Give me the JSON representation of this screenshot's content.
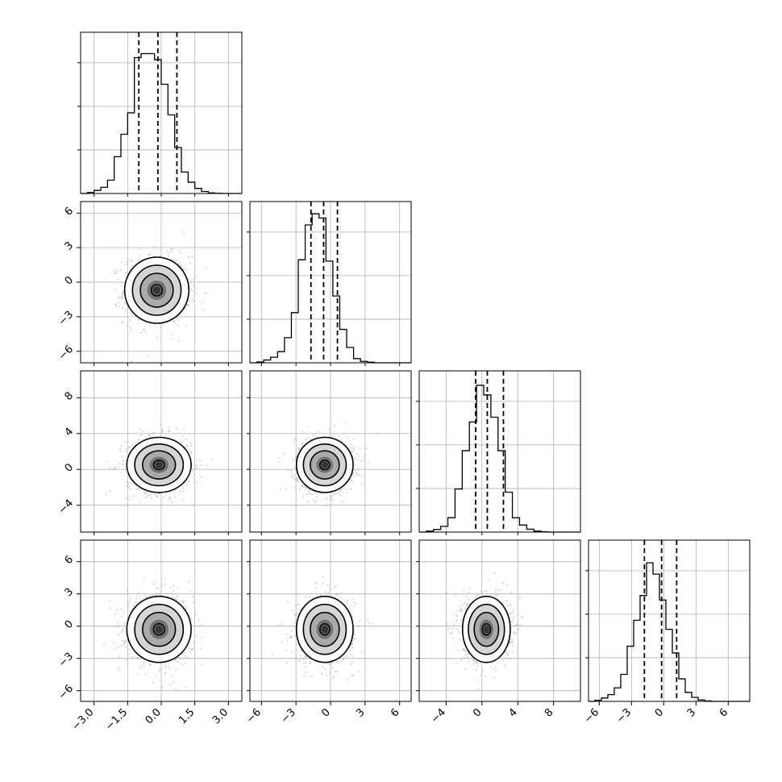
{
  "chart_data": {
    "type": "corner",
    "n_params": 4,
    "colors": {
      "hist": "#000000",
      "grid": "#b0b0b0",
      "scatter": "#9a9a9a",
      "frame": "#000000"
    },
    "diagonal": [
      {
        "param_index": 0,
        "range": [
          -3.6,
          3.6
        ],
        "hist_max": 0.075,
        "x_ticks": [
          "-3.0",
          "-1.5",
          "0.0",
          "1.5",
          "3.0"
        ],
        "x_tick_values": [
          -3.0,
          -1.5,
          0.0,
          1.5,
          3.0
        ],
        "bins": [
          -3.6,
          -3.3,
          -3.0,
          -2.7,
          -2.4,
          -2.1,
          -1.8,
          -1.5,
          -1.2,
          -0.9,
          -0.6,
          -0.3,
          0.0,
          0.3,
          0.6,
          0.9,
          1.2,
          1.5,
          1.8,
          2.1,
          2.4,
          2.7,
          3.0,
          3.3,
          3.6
        ],
        "counts": [
          0,
          0.0005,
          0.0015,
          0.003,
          0.0065,
          0.018,
          0.029,
          0.0395,
          0.0665,
          0.0685,
          0.0685,
          0.0655,
          0.0535,
          0.0385,
          0.0225,
          0.0105,
          0.0055,
          0.0025,
          0.001,
          0.0003,
          0.0001,
          0,
          0,
          0
        ],
        "quantiles": [
          -1.0,
          -0.15,
          0.7
        ]
      },
      {
        "param_index": 1,
        "range": [
          -7,
          7
        ],
        "hist_max": 0.055,
        "x_ticks": [
          "-6",
          "-3",
          "0",
          "3",
          "6"
        ],
        "x_tick_values": [
          -6,
          -3,
          0,
          3,
          6
        ],
        "bins": [
          -7.0,
          -6.4,
          -5.8,
          -5.2,
          -4.6,
          -4.0,
          -3.4,
          -2.8,
          -2.2,
          -1.6,
          -1.0,
          -0.4,
          0.2,
          0.8,
          1.4,
          2.0,
          2.6,
          3.2,
          3.8,
          4.4,
          5.0,
          5.6,
          6.2,
          7.0
        ],
        "counts": [
          0,
          0.0003,
          0.001,
          0.002,
          0.004,
          0.009,
          0.018,
          0.037,
          0.0495,
          0.0535,
          0.052,
          0.0365,
          0.024,
          0.012,
          0.0055,
          0.0015,
          0.0005,
          0.0002,
          0,
          0,
          0,
          0,
          0
        ],
        "quantiles": [
          -1.7,
          -0.6,
          0.6
        ]
      },
      {
        "param_index": 2,
        "range": [
          -7,
          11
        ],
        "hist_max": 0.048,
        "x_ticks": [
          "-4",
          "0",
          "4",
          "8"
        ],
        "x_tick_values": [
          -4,
          0,
          4,
          8
        ],
        "bins": [
          -7.0,
          -6.2,
          -5.4,
          -4.6,
          -3.8,
          -3.0,
          -2.2,
          -1.4,
          -0.6,
          0.2,
          1.0,
          1.8,
          2.6,
          3.4,
          4.2,
          5.0,
          5.8,
          6.6,
          7.4,
          8.2,
          9.0,
          10.0,
          11.0
        ],
        "counts": [
          0,
          0.0003,
          0.0008,
          0.0018,
          0.0045,
          0.0135,
          0.0255,
          0.0345,
          0.046,
          0.043,
          0.036,
          0.0255,
          0.0125,
          0.0045,
          0.0022,
          0.0009,
          0.0003,
          0.0001,
          0,
          0,
          0,
          0
        ],
        "quantiles": [
          -0.7,
          0.6,
          2.4
        ]
      },
      {
        "param_index": 3,
        "range": [
          -7,
          8
        ],
        "hist_max": 0.068,
        "x_ticks": [
          "-6",
          "-3",
          "0",
          "3",
          "6"
        ],
        "x_tick_values": [
          -6,
          -3,
          0,
          3,
          6
        ],
        "bins": [
          -7.0,
          -6.4,
          -5.8,
          -5.2,
          -4.6,
          -4.0,
          -3.4,
          -2.8,
          -2.2,
          -1.6,
          -1.0,
          -0.4,
          0.2,
          0.8,
          1.4,
          2.0,
          2.6,
          3.2,
          3.8,
          4.4,
          5.0,
          5.6,
          6.2,
          8.0
        ],
        "counts": [
          0,
          0.0005,
          0.0015,
          0.003,
          0.006,
          0.012,
          0.0245,
          0.036,
          0.047,
          0.0615,
          0.0565,
          0.045,
          0.032,
          0.0215,
          0.01,
          0.004,
          0.0018,
          0.0006,
          0.0002,
          0,
          0,
          0,
          0
        ],
        "quantiles": [
          -1.8,
          -0.2,
          1.2
        ]
      }
    ],
    "y_ticks": [
      null,
      {
        "labels": [
          "6",
          "3",
          "0",
          "-3",
          "-6"
        ],
        "values": [
          6,
          3,
          0,
          -3,
          -6
        ]
      },
      {
        "labels": [
          "8",
          "4",
          "0",
          "-4"
        ],
        "values": [
          8,
          4,
          0,
          -4
        ]
      },
      {
        "labels": [
          "6",
          "3",
          "0",
          "-3",
          "-6"
        ],
        "values": [
          6,
          3,
          0,
          -3,
          -6
        ]
      }
    ],
    "pairs": [
      {
        "row": 1,
        "col": 0,
        "mean": [
          -0.2,
          -0.7
        ],
        "spread": [
          0.7,
          1.4
        ]
      },
      {
        "row": 2,
        "col": 0,
        "mean": [
          -0.1,
          0.5
        ],
        "spread": [
          0.7,
          1.5
        ]
      },
      {
        "row": 2,
        "col": 1,
        "mean": [
          -0.5,
          0.5
        ],
        "spread": [
          1.2,
          1.5
        ]
      },
      {
        "row": 3,
        "col": 0,
        "mean": [
          -0.1,
          -0.3
        ],
        "spread": [
          0.7,
          1.5
        ]
      },
      {
        "row": 3,
        "col": 1,
        "mean": [
          -0.5,
          -0.3
        ],
        "spread": [
          1.2,
          1.5
        ]
      },
      {
        "row": 3,
        "col": 2,
        "mean": [
          0.5,
          -0.3
        ],
        "spread": [
          1.3,
          1.5
        ]
      }
    ],
    "contour_levels": [
      0.39,
      0.86,
      0.99
    ],
    "grid": true,
    "title": "",
    "xlabel": "",
    "ylabel": ""
  }
}
